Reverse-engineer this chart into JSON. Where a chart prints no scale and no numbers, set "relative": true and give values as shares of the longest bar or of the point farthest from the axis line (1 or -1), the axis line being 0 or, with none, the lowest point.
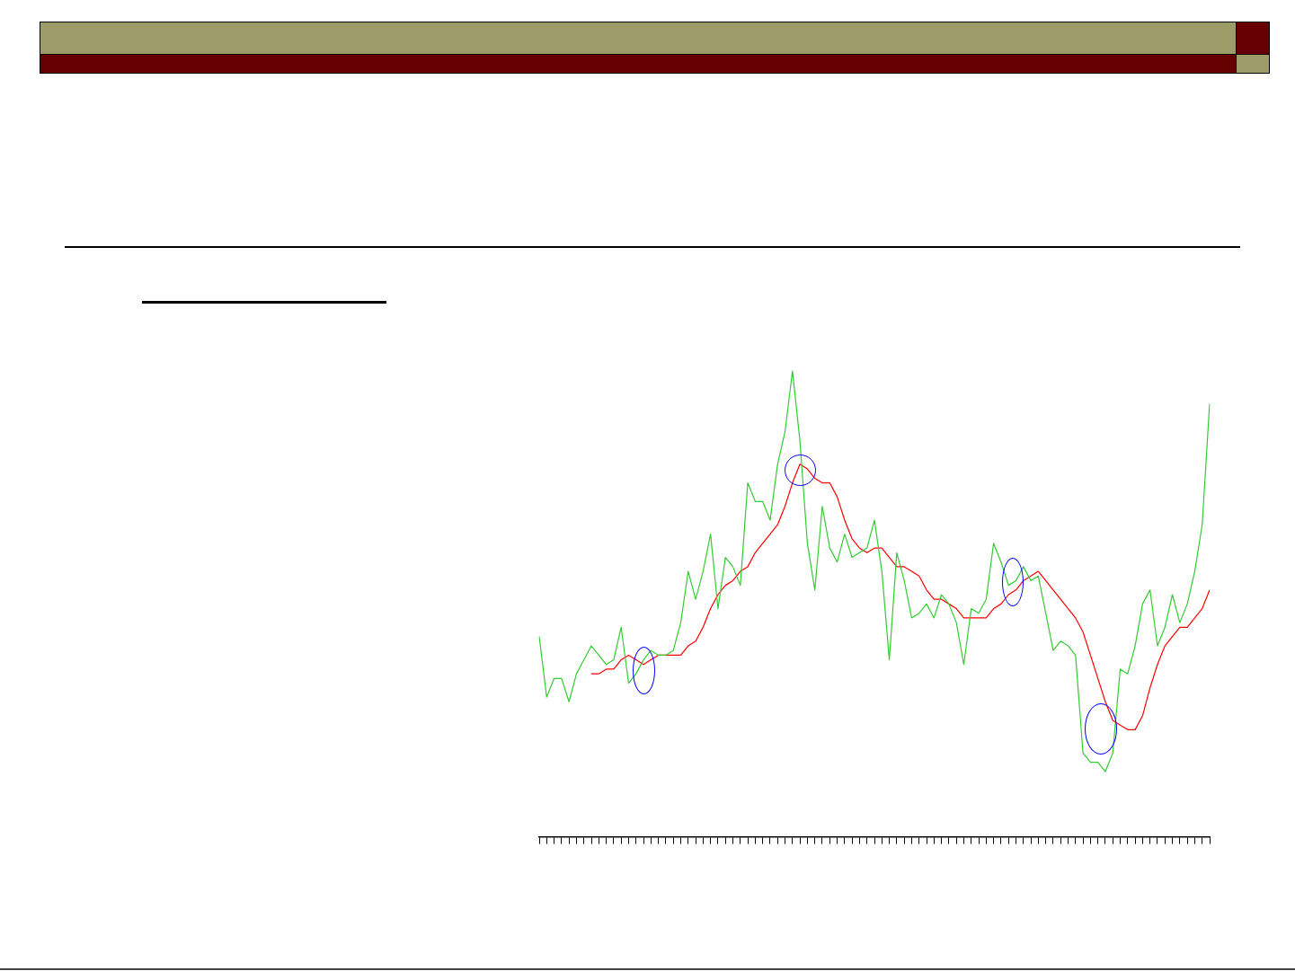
{
  "chart_data": {
    "type": "line",
    "relative": true,
    "categories": [
      null,
      null,
      null,
      null,
      null,
      null,
      null,
      null,
      null,
      null,
      null,
      null,
      null,
      null,
      null,
      null,
      null,
      null,
      null,
      null,
      null,
      null,
      null,
      null,
      null,
      null,
      null,
      null,
      null,
      null,
      null,
      null,
      null,
      null,
      null,
      null,
      null,
      null,
      null,
      null,
      null,
      null,
      null,
      null,
      null,
      null,
      null,
      null,
      null,
      null,
      null,
      null,
      null,
      null,
      null,
      null,
      null,
      null,
      null,
      null,
      null,
      null,
      null,
      null,
      null,
      null,
      null,
      null,
      null,
      null,
      null,
      null,
      null,
      null,
      null,
      null,
      null,
      null,
      null,
      null,
      null,
      null,
      null,
      null,
      null,
      null,
      null,
      null,
      null,
      null,
      null
    ],
    "series": [
      {
        "color": "#33cc33",
        "values": [
          0.43,
          0.3,
          0.34,
          0.34,
          0.29,
          0.35,
          0.38,
          0.41,
          0.39,
          0.37,
          0.38,
          0.45,
          0.33,
          0.35,
          0.38,
          0.4,
          0.39,
          0.39,
          0.4,
          0.46,
          0.57,
          0.51,
          0.57,
          0.65,
          0.49,
          0.6,
          0.58,
          0.54,
          0.76,
          0.72,
          0.72,
          0.68,
          0.8,
          0.87,
          1.0,
          0.85,
          0.63,
          0.53,
          0.71,
          0.62,
          0.59,
          0.65,
          0.6,
          0.61,
          0.62,
          0.68,
          0.57,
          0.38,
          0.61,
          0.55,
          0.47,
          0.48,
          0.5,
          0.47,
          0.52,
          0.5,
          0.46,
          0.37,
          0.49,
          0.48,
          0.51,
          0.63,
          0.59,
          0.54,
          0.55,
          0.58,
          0.55,
          0.56,
          0.48,
          0.4,
          0.42,
          0.41,
          0.39,
          0.18,
          0.16,
          0.16,
          0.14,
          0.18,
          0.36,
          0.35,
          0.41,
          0.5,
          0.53,
          0.41,
          0.45,
          0.52,
          0.46,
          0.5,
          0.57,
          0.67,
          0.93
        ]
      },
      {
        "color": "#ff0000",
        "values": [
          null,
          null,
          null,
          null,
          null,
          null,
          null,
          0.35,
          0.35,
          0.36,
          0.36,
          0.38,
          0.39,
          0.38,
          0.37,
          0.38,
          0.39,
          0.39,
          0.39,
          0.39,
          0.41,
          0.42,
          0.45,
          0.49,
          0.52,
          0.54,
          0.55,
          0.57,
          0.58,
          0.61,
          0.63,
          0.65,
          0.67,
          0.71,
          0.76,
          0.8,
          0.79,
          0.77,
          0.76,
          0.76,
          0.73,
          0.68,
          0.64,
          0.62,
          0.61,
          0.62,
          0.62,
          0.6,
          0.58,
          0.58,
          0.57,
          0.56,
          0.53,
          0.51,
          0.51,
          0.5,
          0.49,
          0.47,
          0.47,
          0.47,
          0.47,
          0.49,
          0.5,
          0.52,
          0.53,
          0.55,
          0.56,
          0.57,
          0.55,
          0.53,
          0.51,
          0.49,
          0.47,
          0.44,
          0.39,
          0.34,
          0.29,
          0.25,
          0.24,
          0.23,
          0.23,
          0.26,
          0.32,
          0.37,
          0.41,
          0.43,
          0.45,
          0.45,
          0.47,
          0.49,
          0.53
        ]
      }
    ]
  }
}
